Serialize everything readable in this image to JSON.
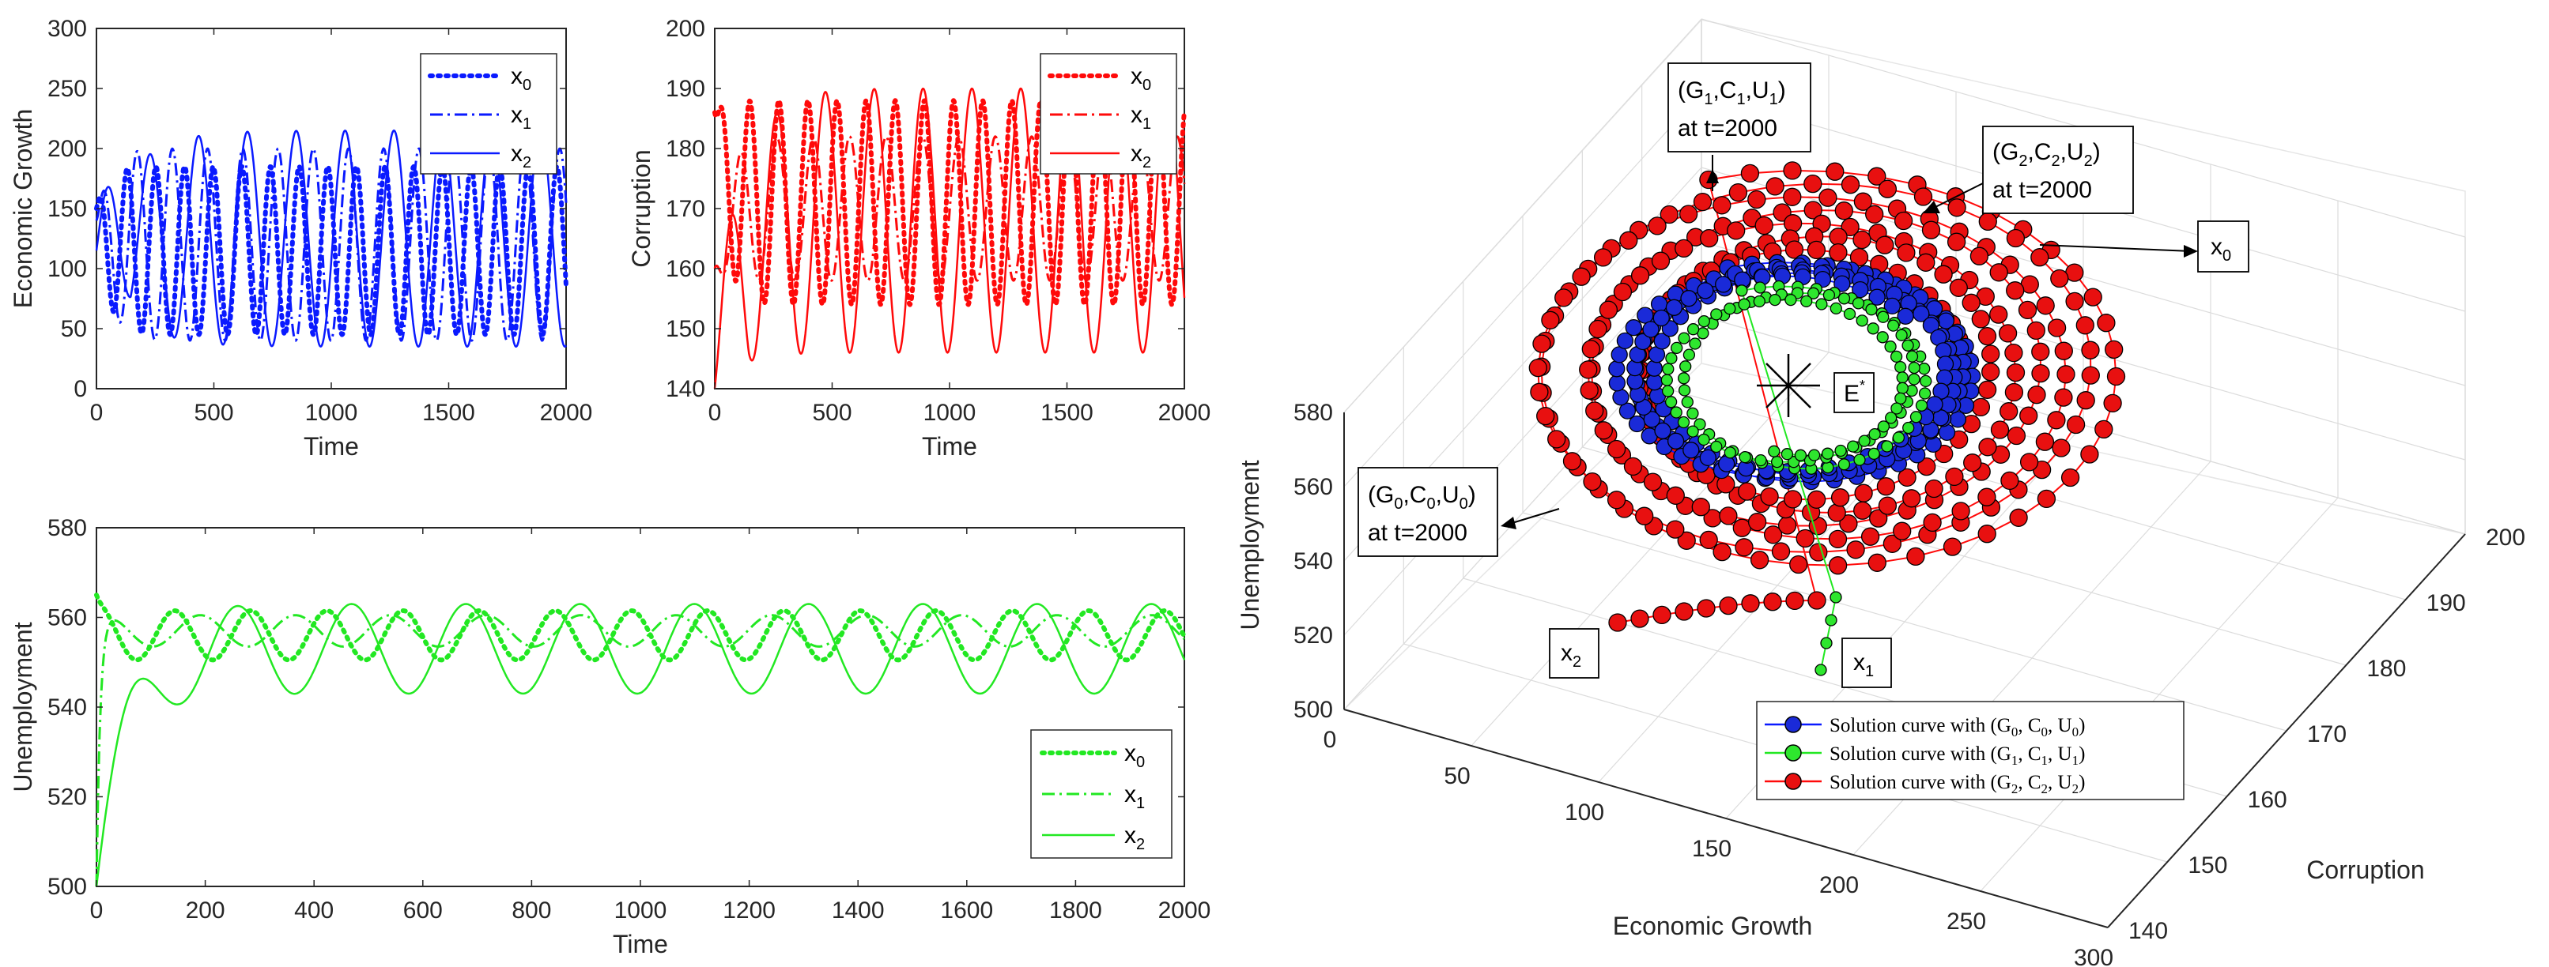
{
  "colors": {
    "blue": "#0a1aff",
    "red": "#ff0a0a",
    "green": "#22e822",
    "blueFill": "#1a2ad8",
    "redFill": "#e81010",
    "greenFill": "#2ee62e",
    "axis": "#262626",
    "grid": "#dcdcdc"
  },
  "chart_data": [
    {
      "id": "growth",
      "type": "line",
      "title": "",
      "xlabel": "Time",
      "ylabel": "Economic Growth",
      "xlim": [
        0,
        2000
      ],
      "ylim": [
        0,
        300
      ],
      "xticks": [
        "0",
        "500",
        "1000",
        "1500",
        "2000"
      ],
      "yticks": [
        "0",
        "50",
        "100",
        "150",
        "200",
        "250",
        "300"
      ],
      "legend": {
        "position": "top-right",
        "entries": [
          {
            "base": "x",
            "sub": "0"
          },
          {
            "base": "x",
            "sub": "1"
          },
          {
            "base": "x",
            "sub": "2"
          }
        ]
      },
      "series": [
        {
          "name": "x0",
          "style": "dotted",
          "start": 150,
          "center": 115,
          "amp": 70,
          "period": 122,
          "phase": 1.1,
          "settle": 120
        },
        {
          "name": "x1",
          "style": "dashdot",
          "start": 140,
          "center": 120,
          "amp": 80,
          "period": 150,
          "phase": 0.6,
          "settle": 150
        },
        {
          "name": "x2",
          "style": "solid",
          "start": 115,
          "center": 125,
          "amp": 90,
          "period": 208,
          "phase": 1.0,
          "settle": 400,
          "firstPeak": 258
        }
      ]
    },
    {
      "id": "corruption",
      "type": "line",
      "title": "",
      "xlabel": "Time",
      "ylabel": "Corruption",
      "xlim": [
        0,
        2000
      ],
      "ylim": [
        140,
        200
      ],
      "xticks": [
        "0",
        "500",
        "1000",
        "1500",
        "2000"
      ],
      "yticks": [
        "140",
        "150",
        "160",
        "170",
        "180",
        "190",
        "200"
      ],
      "legend": {
        "position": "top-right",
        "entries": [
          {
            "base": "x",
            "sub": "0"
          },
          {
            "base": "x",
            "sub": "1"
          },
          {
            "base": "x",
            "sub": "2"
          }
        ]
      },
      "series": [
        {
          "name": "x0",
          "style": "dotted",
          "start": 186,
          "center": 171,
          "amp": 17,
          "period": 124,
          "phase": 0.3,
          "settle": 120
        },
        {
          "name": "x1",
          "style": "dashdot",
          "start": 160,
          "center": 170,
          "amp": 12,
          "period": 155,
          "phase": 3.4,
          "settle": 150
        },
        {
          "name": "x2",
          "style": "solid",
          "start": 140,
          "center": 168,
          "amp": 22,
          "period": 208,
          "phase": -0.1,
          "settle": 300,
          "firstPeak": 196
        }
      ]
    },
    {
      "id": "unemployment",
      "type": "line",
      "title": "",
      "xlabel": "Time",
      "ylabel": "Unemployment",
      "xlim": [
        0,
        2000
      ],
      "ylim": [
        500,
        580
      ],
      "xticks": [
        "0",
        "200",
        "400",
        "600",
        "800",
        "1000",
        "1200",
        "1400",
        "1600",
        "1800",
        "2000"
      ],
      "yticks": [
        "500",
        "520",
        "540",
        "560",
        "580"
      ],
      "legend": {
        "position": "bottom-right",
        "entries": [
          {
            "base": "x",
            "sub": "0"
          },
          {
            "base": "x",
            "sub": "1"
          },
          {
            "base": "x",
            "sub": "2"
          }
        ]
      },
      "series": [
        {
          "name": "x0",
          "style": "dotted",
          "start": 565,
          "center": 556,
          "amp": 5.5,
          "period": 140,
          "phase": 1.4,
          "settle": 30
        },
        {
          "name": "x1",
          "style": "dashdot",
          "start": 500,
          "center": 557,
          "amp": 3.5,
          "period": 175,
          "phase": 1.0,
          "settle": 20
        },
        {
          "name": "x2",
          "style": "solid",
          "start": 500,
          "center": 553,
          "amp": 10,
          "period": 210,
          "phase": 0.1,
          "settle": 150,
          "firstTrough": 543
        }
      ]
    },
    {
      "id": "phase3d",
      "type": "scatter3d",
      "title": "",
      "xlabel": "Economic Growth",
      "ylabel": "Corruption",
      "zlabel": "Unemployment",
      "xlim": [
        0,
        300
      ],
      "ylim": [
        140,
        200
      ],
      "zlim": [
        500,
        580
      ],
      "xticks": [
        "0",
        "50",
        "100",
        "150",
        "200",
        "250",
        "300"
      ],
      "yticks": [
        "140",
        "150",
        "160",
        "170",
        "180",
        "190",
        "200"
      ],
      "zticks": [
        "500",
        "520",
        "540",
        "560",
        "580"
      ],
      "equilibrium_label": "E",
      "equilibrium_sup": "*",
      "annotations": [
        {
          "id": "g0",
          "pre": "(G",
          "s1": "0",
          "m1": ",C",
          "s2": "0",
          "m2": ",U",
          "s3": "0",
          "post": ")",
          "line2": "at t=2000"
        },
        {
          "id": "g1",
          "pre": "(G",
          "s1": "1",
          "m1": ",C",
          "s2": "1",
          "m2": ",U",
          "s3": "1",
          "post": ")",
          "line2": "at t=2000"
        },
        {
          "id": "g2",
          "pre": "(G",
          "s1": "2",
          "m1": ",C",
          "s2": "2",
          "m2": ",U",
          "s3": "2",
          "post": ")",
          "line2": "at t=2000"
        },
        {
          "id": "x0",
          "base": "x",
          "sub": "0"
        },
        {
          "id": "x1",
          "base": "x",
          "sub": "1"
        },
        {
          "id": "x2",
          "base": "x",
          "sub": "2"
        }
      ],
      "legend": {
        "position": "bottom-right",
        "entries": [
          {
            "text": "Solution curve with (G",
            "s1": "0",
            "m1": ", C",
            "s2": "0",
            "m2": ", U",
            "s3": "0",
            "post": ")"
          },
          {
            "text": "Solution curve with (G",
            "s1": "1",
            "m1": ", C",
            "s2": "1",
            "m2": ", U",
            "s3": "1",
            "post": ")"
          },
          {
            "text": "Solution curve with (G",
            "s1": "2",
            "m1": ", C",
            "s2": "2",
            "m2": ", U",
            "s3": "2",
            "post": ")"
          }
        ]
      }
    }
  ]
}
